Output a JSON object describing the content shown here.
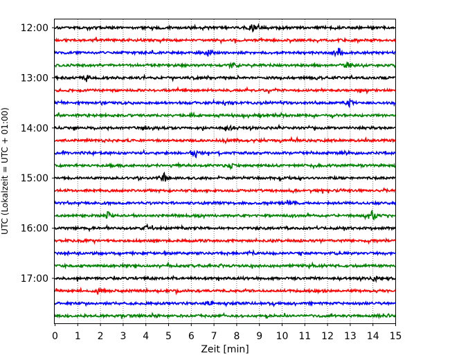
{
  "chart_data": {
    "type": "line",
    "title": "",
    "xlabel": "Zeit  [min]",
    "ylabel": "UTC (Lokalzeit = UTC + 01:00)",
    "xlim": [
      0,
      15
    ],
    "x_ticks": [
      0,
      1,
      2,
      3,
      4,
      5,
      6,
      7,
      8,
      9,
      10,
      11,
      12,
      13,
      14,
      15
    ],
    "y_tick_labels": [
      "12:00",
      "13:00",
      "14:00",
      "15:00",
      "16:00",
      "17:00"
    ],
    "trace_start_times": [
      "12:00",
      "12:15",
      "12:30",
      "12:45",
      "13:00",
      "13:15",
      "13:30",
      "13:45",
      "14:00",
      "14:15",
      "14:30",
      "14:45",
      "15:00",
      "15:15",
      "15:30",
      "15:45",
      "16:00",
      "16:15",
      "16:30",
      "16:45",
      "17:00",
      "17:15",
      "17:30",
      "17:45"
    ],
    "trace_minutes_per_line": 15,
    "trace_colors": [
      "#000000",
      "#ff0000",
      "#0000ff",
      "#008000"
    ],
    "grid": "x-dotted",
    "events": [
      {
        "trace": 0,
        "minute": 8.7,
        "amplitude": 0.45
      },
      {
        "trace": 2,
        "minute": 6.8,
        "amplitude": 0.7
      },
      {
        "trace": 2,
        "minute": 12.5,
        "amplitude": 0.9
      },
      {
        "trace": 3,
        "minute": 7.8,
        "amplitude": 0.6
      },
      {
        "trace": 3,
        "minute": 12.9,
        "amplitude": 0.55
      },
      {
        "trace": 4,
        "minute": 1.4,
        "amplitude": 0.5
      },
      {
        "trace": 6,
        "minute": 13.0,
        "amplitude": 0.55
      },
      {
        "trace": 8,
        "minute": 3.9,
        "amplitude": 0.45
      },
      {
        "trace": 8,
        "minute": 7.8,
        "amplitude": 0.4
      },
      {
        "trace": 10,
        "minute": 6.2,
        "amplitude": 0.6
      },
      {
        "trace": 11,
        "minute": 7.7,
        "amplitude": 0.5
      },
      {
        "trace": 12,
        "minute": 4.8,
        "amplitude": 0.75
      },
      {
        "trace": 14,
        "minute": 10.3,
        "amplitude": 0.5
      },
      {
        "trace": 15,
        "minute": 2.3,
        "amplitude": 0.85
      },
      {
        "trace": 15,
        "minute": 14.0,
        "amplitude": 0.8
      },
      {
        "trace": 16,
        "minute": 4.1,
        "amplitude": 0.45
      },
      {
        "trace": 20,
        "minute": 14.1,
        "amplitude": 0.35
      },
      {
        "trace": 21,
        "minute": 1.9,
        "amplitude": 0.45
      },
      {
        "trace": 22,
        "minute": 6.8,
        "amplitude": 0.4
      }
    ]
  }
}
